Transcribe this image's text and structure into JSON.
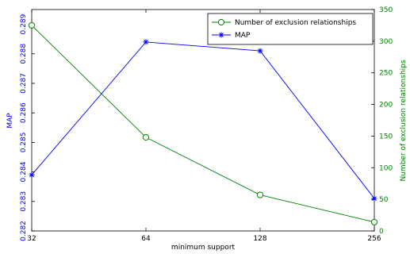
{
  "chart_data": {
    "type": "line",
    "title": "",
    "xlabel": "minimum support",
    "x": [
      "32",
      "64",
      "128",
      "256"
    ],
    "grid": false,
    "legend_position": "top-right",
    "y_left": {
      "label": "MAP",
      "lim": [
        0.282,
        0.2895
      ],
      "ticks": [
        "0.282",
        "0.283",
        "0.284",
        "0.285",
        "0.286",
        "0.287",
        "0.288",
        "0.289"
      ],
      "color": "#0000ff"
    },
    "y_right": {
      "label": "Number of exclusion relationships",
      "lim": [
        0,
        350
      ],
      "ticks": [
        "0",
        "50",
        "100",
        "150",
        "200",
        "250",
        "300",
        "350"
      ],
      "color": "#008000"
    },
    "series": [
      {
        "name": "Number of exclusion relationships",
        "axis": "right",
        "marker": "circle",
        "color": "#008000",
        "values": [
          325,
          148,
          57,
          14
        ]
      },
      {
        "name": "MAP",
        "axis": "left",
        "marker": "star",
        "color": "#0000ff",
        "values": [
          0.2839,
          0.2884,
          0.2881,
          0.2831
        ]
      }
    ]
  }
}
